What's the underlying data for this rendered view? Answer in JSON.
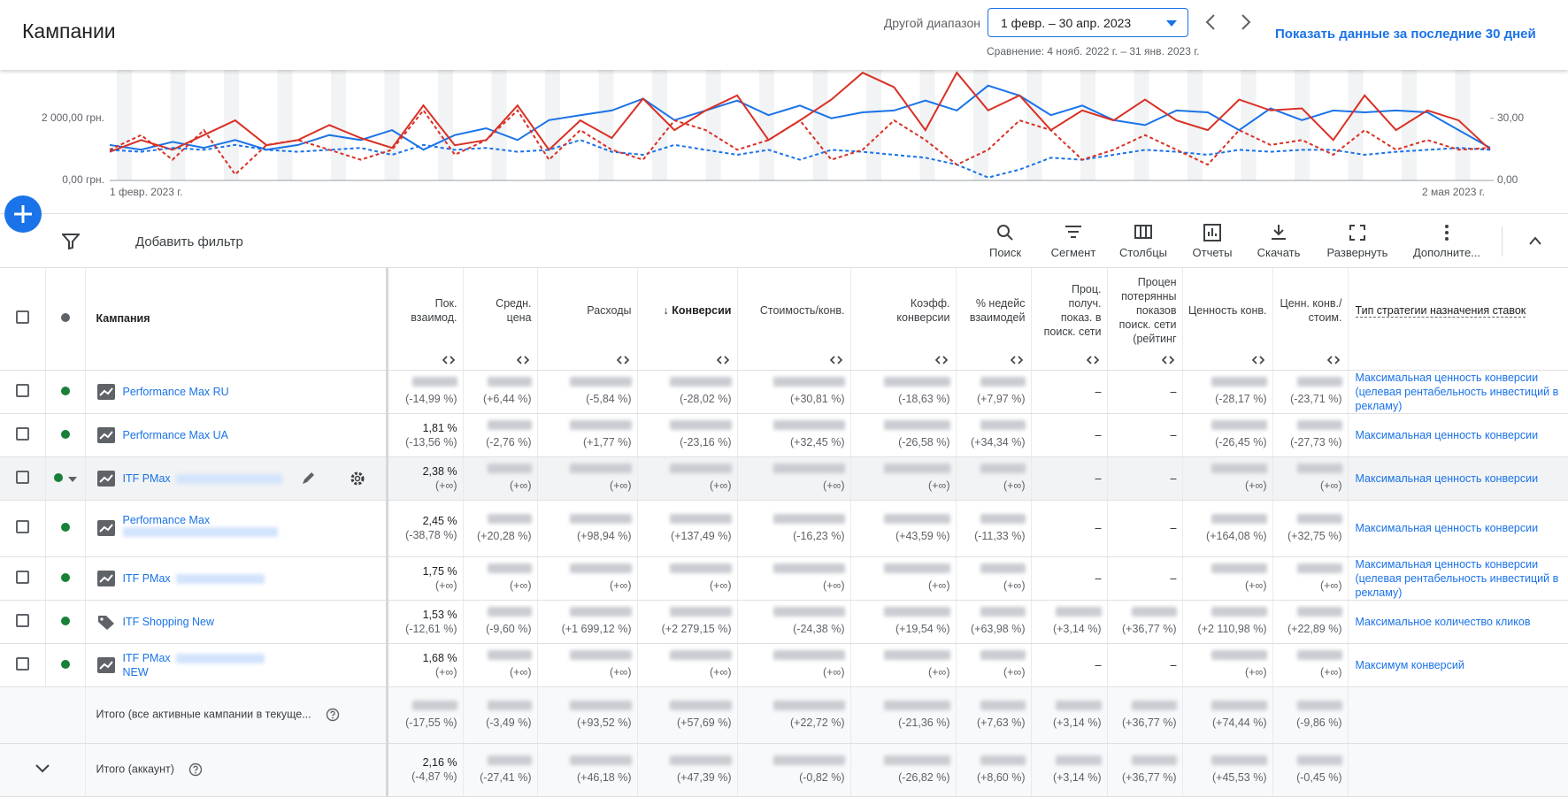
{
  "header": {
    "title": "Кампании",
    "range_label": "Другой диапазон",
    "date_range": "1 февр. – 30 апр. 2023",
    "comparison": "Сравнение: 4 нояб. 2022 г. – 31 янв. 2023 г.",
    "show_last": "Показать данные за последние 30 дней"
  },
  "chart": {
    "type": "line",
    "ylim": [
      0,
      3500
    ],
    "y2lim": [
      0,
      52.5
    ],
    "yticks": [
      {
        "value": 0,
        "label": "0,00 грн."
      },
      {
        "value": 2000,
        "label": "2 000,00 грн."
      }
    ],
    "y2ticks": [
      {
        "value": 0,
        "label": "0,00"
      },
      {
        "value": 30,
        "label": "30,00"
      }
    ],
    "x_start": "1 февр. 2023 г.",
    "x_end": "2 мая 2023 г.",
    "series": [
      {
        "color": "#1a73e8",
        "dashed": false,
        "axis": "y",
        "values": [
          1140,
          990,
          1240,
          1050,
          1300,
          990,
          1140,
          1460,
          1300,
          1620,
          990,
          1460,
          1680,
          1300,
          1940,
          2100,
          2250,
          2630,
          1940,
          2250,
          2570,
          2100,
          2410,
          2000,
          2190,
          2250,
          2570,
          2250,
          3050,
          2730,
          2100,
          2410,
          1940,
          1780,
          2250,
          2190,
          1620,
          2320,
          1940,
          2250,
          2190,
          2250,
          2190,
          1620,
          1050
        ]
      },
      {
        "color": "#d93025",
        "dashed": false,
        "axis": "y2",
        "values": [
          13.8,
          19.5,
          14.8,
          21.9,
          29,
          17,
          19.5,
          26.7,
          20.5,
          15.7,
          36.2,
          17,
          19.5,
          36.2,
          14.8,
          29,
          20.5,
          39.5,
          24.3,
          33.8,
          41,
          19.5,
          29,
          39,
          52,
          45,
          24.3,
          52,
          33.8,
          41,
          24.3,
          33.8,
          29,
          39,
          29,
          24.3,
          39,
          33.8,
          34.8,
          19.5,
          41,
          24.3,
          33.8,
          29,
          14.8
        ]
      },
      {
        "color": "#1a73e8",
        "dashed": true,
        "axis": "y",
        "values": [
          984,
          921,
          1048,
          984,
          1143,
          984,
          921,
          984,
          1048,
          826,
          1143,
          984,
          1048,
          921,
          984,
          1302,
          921,
          826,
          1143,
          984,
          826,
          984,
          667,
          984,
          921,
          826,
          730,
          508,
          95,
          349,
          730,
          667,
          826,
          984,
          921,
          826,
          984,
          921,
          984,
          984,
          826,
          921,
          984,
          1048,
          984
        ]
      },
      {
        "color": "#d93025",
        "dashed": true,
        "axis": "y2",
        "values": [
          14.8,
          21.9,
          10,
          24.3,
          2.9,
          17.1,
          19.5,
          14.8,
          10,
          14.8,
          33.8,
          12.4,
          19.5,
          33.8,
          10,
          24.3,
          14.8,
          10,
          29,
          24.3,
          14.8,
          19.5,
          29,
          10,
          14.8,
          29,
          19.5,
          7.6,
          14.8,
          29,
          24.3,
          10,
          14.8,
          21.9,
          14.8,
          7.6,
          24.3,
          17.1,
          19.5,
          12.4,
          24.3,
          14.8,
          19.5,
          14.8,
          15.7
        ]
      }
    ]
  },
  "toolbar": {
    "filter": "Добавить фильтр",
    "buttons": [
      "Поиск",
      "Сегмент",
      "Столбцы",
      "Отчеты",
      "Скачать",
      "Развернуть",
      "Дополните..."
    ]
  },
  "table": {
    "columns": [
      "Кампания",
      "Пок. взаимод.",
      "Средн. цена",
      "Расходы",
      "Конверсии",
      "Стоимость/конв.",
      "Коэфф. конверсии",
      "% недейс взаимодей",
      "Проц. получ. показ. в поиск. сети",
      "Процен потерянны показов поиск. сети (рейтинг",
      "Ценность конв.",
      "Ценн. конв./стоим.",
      "Тип стратегии назначения ставок"
    ],
    "rows": [
      {
        "name": "Performance Max RU",
        "strategy": "Максимальная ценность конверсии (целевая рентабельность инвестиций в рекламу)",
        "cells": [
          {
            "change": "(-14,99 %)"
          },
          {
            "change": "(+6,44 %)"
          },
          {
            "change": "(-5,84 %)"
          },
          {
            "change": "(-28,02 %)"
          },
          {
            "change": "(+30,81 %)"
          },
          {
            "change": "(-18,63 %)"
          },
          {
            "change": "(+7,97 %)"
          },
          {
            "value": "–"
          },
          {
            "value": "–"
          },
          {
            "change": "(-28,17 %)"
          },
          {
            "change": "(-23,71 %)"
          }
        ]
      },
      {
        "name": "Performance Max UA",
        "strategy": "Максимальная ценность конверсии",
        "cells": [
          {
            "value": "1,81 %",
            "change": "(-13,56 %)"
          },
          {
            "change": "(-2,76 %)"
          },
          {
            "change": "(+1,77 %)"
          },
          {
            "change": "(-23,16 %)"
          },
          {
            "change": "(+32,45 %)"
          },
          {
            "change": "(-26,58 %)"
          },
          {
            "change": "(+34,34 %)"
          },
          {
            "value": "–"
          },
          {
            "value": "–"
          },
          {
            "change": "(-26,45 %)"
          },
          {
            "change": "(-27,73 %)"
          }
        ]
      },
      {
        "name": "ITF PMax",
        "strategy": "Максимальная ценность конверсии",
        "cells": [
          {
            "value": "2,38 %",
            "change": "(+∞)"
          },
          {
            "change": "(+∞)"
          },
          {
            "change": "(+∞)"
          },
          {
            "change": "(+∞)"
          },
          {
            "change": "(+∞)"
          },
          {
            "change": "(+∞)"
          },
          {
            "change": "(+∞)"
          },
          {
            "value": "–"
          },
          {
            "value": "–"
          },
          {
            "change": "(+∞)"
          },
          {
            "change": "(+∞)"
          }
        ]
      },
      {
        "name": "Performance Max",
        "strategy": "Максимальная ценность конверсии",
        "cells": [
          {
            "value": "2,45 %",
            "change": "(-38,78 %)"
          },
          {
            "change": "(+20,28 %)"
          },
          {
            "change": "(+98,94 %)"
          },
          {
            "change": "(+137,49 %)"
          },
          {
            "change": "(-16,23 %)"
          },
          {
            "change": "(+43,59 %)"
          },
          {
            "change": "(-11,33 %)"
          },
          {
            "value": "–"
          },
          {
            "value": "–"
          },
          {
            "change": "(+164,08 %)"
          },
          {
            "change": "(+32,75 %)"
          }
        ]
      },
      {
        "name": "ITF PMax",
        "strategy": "Максимальная ценность конверсии (целевая рентабельность инвестиций в рекламу)",
        "cells": [
          {
            "value": "1,75 %",
            "change": "(+∞)"
          },
          {
            "change": "(+∞)"
          },
          {
            "change": "(+∞)"
          },
          {
            "change": "(+∞)"
          },
          {
            "change": "(+∞)"
          },
          {
            "change": "(+∞)"
          },
          {
            "change": "(+∞)"
          },
          {
            "value": "–"
          },
          {
            "value": "–"
          },
          {
            "change": "(+∞)"
          },
          {
            "change": "(+∞)"
          }
        ]
      },
      {
        "name": "ITF Shopping New",
        "strategy": "Максимальное количество кликов",
        "cells": [
          {
            "value": "1,53 %",
            "change": "(-12,61 %)"
          },
          {
            "change": "(-9,60 %)"
          },
          {
            "change": "(+1 699,12 %)"
          },
          {
            "change": "(+2 279,15 %)"
          },
          {
            "change": "(-24,38 %)"
          },
          {
            "change": "(+19,54 %)"
          },
          {
            "change": "(+63,98 %)"
          },
          {
            "change": "(+3,14 %)"
          },
          {
            "change": "(+36,77 %)"
          },
          {
            "change": "(+2 110,98 %)"
          },
          {
            "change": "(+22,89 %)"
          }
        ]
      },
      {
        "name": "ITF PMax",
        "name2": "NEW",
        "strategy": "Максимум конверсий",
        "cells": [
          {
            "value": "1,68 %",
            "change": "(+∞)"
          },
          {
            "change": "(+∞)"
          },
          {
            "change": "(+∞)"
          },
          {
            "change": "(+∞)"
          },
          {
            "change": "(+∞)"
          },
          {
            "change": "(+∞)"
          },
          {
            "change": "(+∞)"
          },
          {
            "value": "–"
          },
          {
            "value": "–"
          },
          {
            "change": "(+∞)"
          },
          {
            "change": "(+∞)"
          }
        ]
      }
    ],
    "totals": [
      {
        "name": "Итого (все активные кампании в текуще...",
        "cells": [
          {
            "change": "(-17,55 %)"
          },
          {
            "change": "(-3,49 %)"
          },
          {
            "change": "(+93,52 %)"
          },
          {
            "change": "(+57,69 %)"
          },
          {
            "change": "(+22,72 %)"
          },
          {
            "change": "(-21,36 %)"
          },
          {
            "change": "(+7,63 %)"
          },
          {
            "change": "(+3,14 %)"
          },
          {
            "change": "(+36,77 %)"
          },
          {
            "change": "(+74,44 %)"
          },
          {
            "change": "(-9,86 %)"
          }
        ]
      },
      {
        "name": "Итого (аккаунт)",
        "cells": [
          {
            "value": "2,16 %",
            "change": "(-4,87 %)"
          },
          {
            "change": "(-27,41 %)"
          },
          {
            "change": "(+46,18 %)"
          },
          {
            "change": "(+47,39 %)"
          },
          {
            "change": "(-0,82 %)"
          },
          {
            "change": "(-26,82 %)"
          },
          {
            "change": "(+8,60 %)"
          },
          {
            "change": "(+3,14 %)"
          },
          {
            "change": "(+36,77 %)"
          },
          {
            "change": "(+45,53 %)"
          },
          {
            "change": "(-0,45 %)"
          }
        ]
      }
    ]
  }
}
